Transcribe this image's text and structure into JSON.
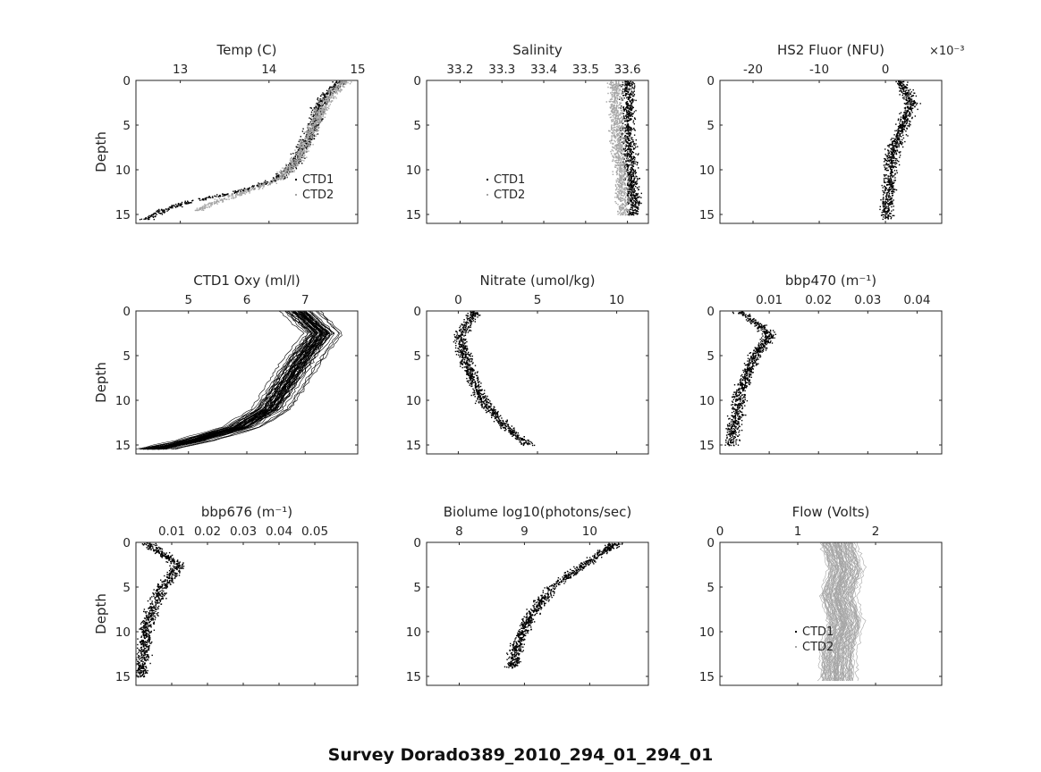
{
  "figure_title": "Survey Dorado389_2010_294_01_294_01",
  "colors": {
    "ctd1": "#000000",
    "ctd2": "#a6a6a6",
    "axis": "#262626"
  },
  "chart_data": [
    {
      "type": "scatter",
      "title": "Temp (C)",
      "xlabel_position": "top",
      "ylabel": "Depth",
      "xlim": [
        12.5,
        15
      ],
      "ylim": [
        16,
        0
      ],
      "xticks": [
        13,
        14,
        15
      ],
      "yticks": [
        0,
        5,
        10,
        15
      ],
      "legend": [
        "CTD1",
        "CTD2"
      ],
      "legend_placement": "lower-right",
      "series": [
        {
          "name": "CTD1",
          "profile": [
            [
              14.8,
              0
            ],
            [
              14.7,
              1
            ],
            [
              14.6,
              2
            ],
            [
              14.55,
              3
            ],
            [
              14.5,
              5
            ],
            [
              14.4,
              7
            ],
            [
              14.3,
              9
            ],
            [
              14.1,
              11
            ],
            [
              13.6,
              12.5
            ],
            [
              13.1,
              13.5
            ],
            [
              12.8,
              14.5
            ],
            [
              12.6,
              15.5
            ]
          ]
        },
        {
          "name": "CTD2",
          "profile": [
            [
              14.85,
              0
            ],
            [
              14.75,
              1
            ],
            [
              14.65,
              2
            ],
            [
              14.6,
              3
            ],
            [
              14.5,
              5
            ],
            [
              14.4,
              7
            ],
            [
              14.3,
              9
            ],
            [
              14.1,
              11
            ],
            [
              13.7,
              12.5
            ],
            [
              13.4,
              13.5
            ],
            [
              13.2,
              14.5
            ]
          ]
        }
      ]
    },
    {
      "type": "scatter",
      "title": "Salinity",
      "xlabel_position": "top",
      "ylabel": "",
      "xlim": [
        33.12,
        33.65
      ],
      "ylim": [
        16,
        0
      ],
      "xticks": [
        33.2,
        33.3,
        33.4,
        33.5,
        33.6
      ],
      "yticks": [
        0,
        5,
        10,
        15
      ],
      "legend": [
        "CTD1",
        "CTD2"
      ],
      "legend_placement": "lower-left",
      "series": [
        {
          "name": "CTD1",
          "profile": [
            [
              33.6,
              0
            ],
            [
              33.6,
              3
            ],
            [
              33.6,
              6
            ],
            [
              33.605,
              9
            ],
            [
              33.61,
              12
            ],
            [
              33.615,
              15
            ]
          ]
        },
        {
          "name": "CTD2",
          "profile": [
            [
              33.57,
              0
            ],
            [
              33.57,
              3
            ],
            [
              33.575,
              6
            ],
            [
              33.58,
              9
            ],
            [
              33.585,
              12
            ],
            [
              33.59,
              15
            ]
          ]
        }
      ]
    },
    {
      "type": "scatter",
      "title": "HS2 Fluor (NFU)",
      "xlabel_position": "top",
      "ylabel": "",
      "x_multiplier": "×10⁻³",
      "xlim": [
        -0.025,
        0.0085
      ],
      "ylim": [
        16,
        0
      ],
      "xticks": [
        -0.02,
        -0.01,
        0
      ],
      "xticklabels": [
        "-20",
        "-10",
        "0"
      ],
      "yticks": [
        0,
        5,
        10,
        15
      ],
      "series": [
        {
          "name": "CTD1",
          "profile": [
            [
              0.002,
              0
            ],
            [
              0.004,
              2.5
            ],
            [
              0.003,
              4
            ],
            [
              0.001,
              8
            ],
            [
              0.0005,
              12
            ],
            [
              0,
              15.5
            ]
          ]
        }
      ]
    },
    {
      "type": "line",
      "title": "CTD1 Oxy (ml/l)",
      "xlabel_position": "top",
      "ylabel": "Depth",
      "xlim": [
        4.1,
        7.9
      ],
      "ylim": [
        16,
        0
      ],
      "xticks": [
        5,
        6,
        7
      ],
      "yticks": [
        0,
        5,
        10,
        15
      ],
      "series": [
        {
          "name": "CTD1",
          "profile": [
            [
              6.9,
              0
            ],
            [
              7.3,
              2.5
            ],
            [
              7,
              5
            ],
            [
              6.7,
              8
            ],
            [
              6.4,
              11
            ],
            [
              5.9,
              13
            ],
            [
              5.1,
              14.5
            ],
            [
              4.4,
              15.5
            ]
          ]
        }
      ]
    },
    {
      "type": "scatter",
      "title": "Nitrate (umol/kg)",
      "xlabel_position": "top",
      "ylabel": "",
      "xlim": [
        -2,
        12
      ],
      "ylim": [
        16,
        0
      ],
      "xticks": [
        0,
        5,
        10
      ],
      "yticks": [
        0,
        5,
        10,
        15
      ],
      "series": [
        {
          "name": "CTD1",
          "profile": [
            [
              1,
              0
            ],
            [
              0,
              3
            ],
            [
              0.5,
              6
            ],
            [
              1.5,
              10
            ],
            [
              3,
              13
            ],
            [
              4.5,
              15
            ]
          ]
        }
      ]
    },
    {
      "type": "scatter",
      "title": "bbp470 (m⁻¹)",
      "xlabel_position": "top",
      "ylabel": "",
      "xlim": [
        0,
        0.045
      ],
      "ylim": [
        16,
        0
      ],
      "xticks": [
        0.01,
        0.02,
        0.03,
        0.04
      ],
      "yticks": [
        0,
        5,
        10,
        15
      ],
      "series": [
        {
          "name": "CTD1",
          "profile": [
            [
              0.004,
              0
            ],
            [
              0.01,
              2.5
            ],
            [
              0.007,
              5
            ],
            [
              0.004,
              9
            ],
            [
              0.003,
              12
            ],
            [
              0.002,
              15
            ]
          ]
        }
      ]
    },
    {
      "type": "scatter",
      "title": "bbp676 (m⁻¹)",
      "xlabel_position": "top",
      "ylabel": "Depth",
      "xlim": [
        0,
        0.062
      ],
      "ylim": [
        16,
        0
      ],
      "xticks": [
        0.01,
        0.02,
        0.03,
        0.04,
        0.05
      ],
      "yticks": [
        0,
        5,
        10,
        15
      ],
      "series": [
        {
          "name": "CTD1",
          "profile": [
            [
              0.003,
              0
            ],
            [
              0.012,
              2.5
            ],
            [
              0.007,
              5
            ],
            [
              0.003,
              9
            ],
            [
              0.002,
              12
            ],
            [
              0.001,
              15
            ]
          ]
        }
      ]
    },
    {
      "type": "scatter",
      "title": "Biolume log10(photons/sec)",
      "xlabel_position": "top",
      "ylabel": "",
      "xlim": [
        7.5,
        10.9
      ],
      "ylim": [
        16,
        0
      ],
      "xticks": [
        8,
        9,
        10
      ],
      "yticks": [
        0,
        5,
        10,
        15
      ],
      "series": [
        {
          "name": "CTD1",
          "profile": [
            [
              10.4,
              0
            ],
            [
              9.9,
              2.5
            ],
            [
              9.4,
              5
            ],
            [
              9.1,
              8
            ],
            [
              8.9,
              11
            ],
            [
              8.8,
              14
            ]
          ]
        }
      ]
    },
    {
      "type": "line",
      "title": "Flow (Volts)",
      "xlabel_position": "top",
      "ylabel": "",
      "xlim": [
        0,
        2.85
      ],
      "ylim": [
        16,
        0
      ],
      "xticks": [
        0,
        1,
        2
      ],
      "yticks": [
        0,
        5,
        10,
        15
      ],
      "legend": [
        "CTD1",
        "CTD2"
      ],
      "legend_placement": "lower-center",
      "series": [
        {
          "name": "CTD2",
          "profile": [
            [
              1.5,
              0
            ],
            [
              1.6,
              3
            ],
            [
              1.5,
              6
            ],
            [
              1.6,
              9
            ],
            [
              1.5,
              12
            ],
            [
              1.5,
              15.5
            ]
          ]
        }
      ]
    }
  ]
}
